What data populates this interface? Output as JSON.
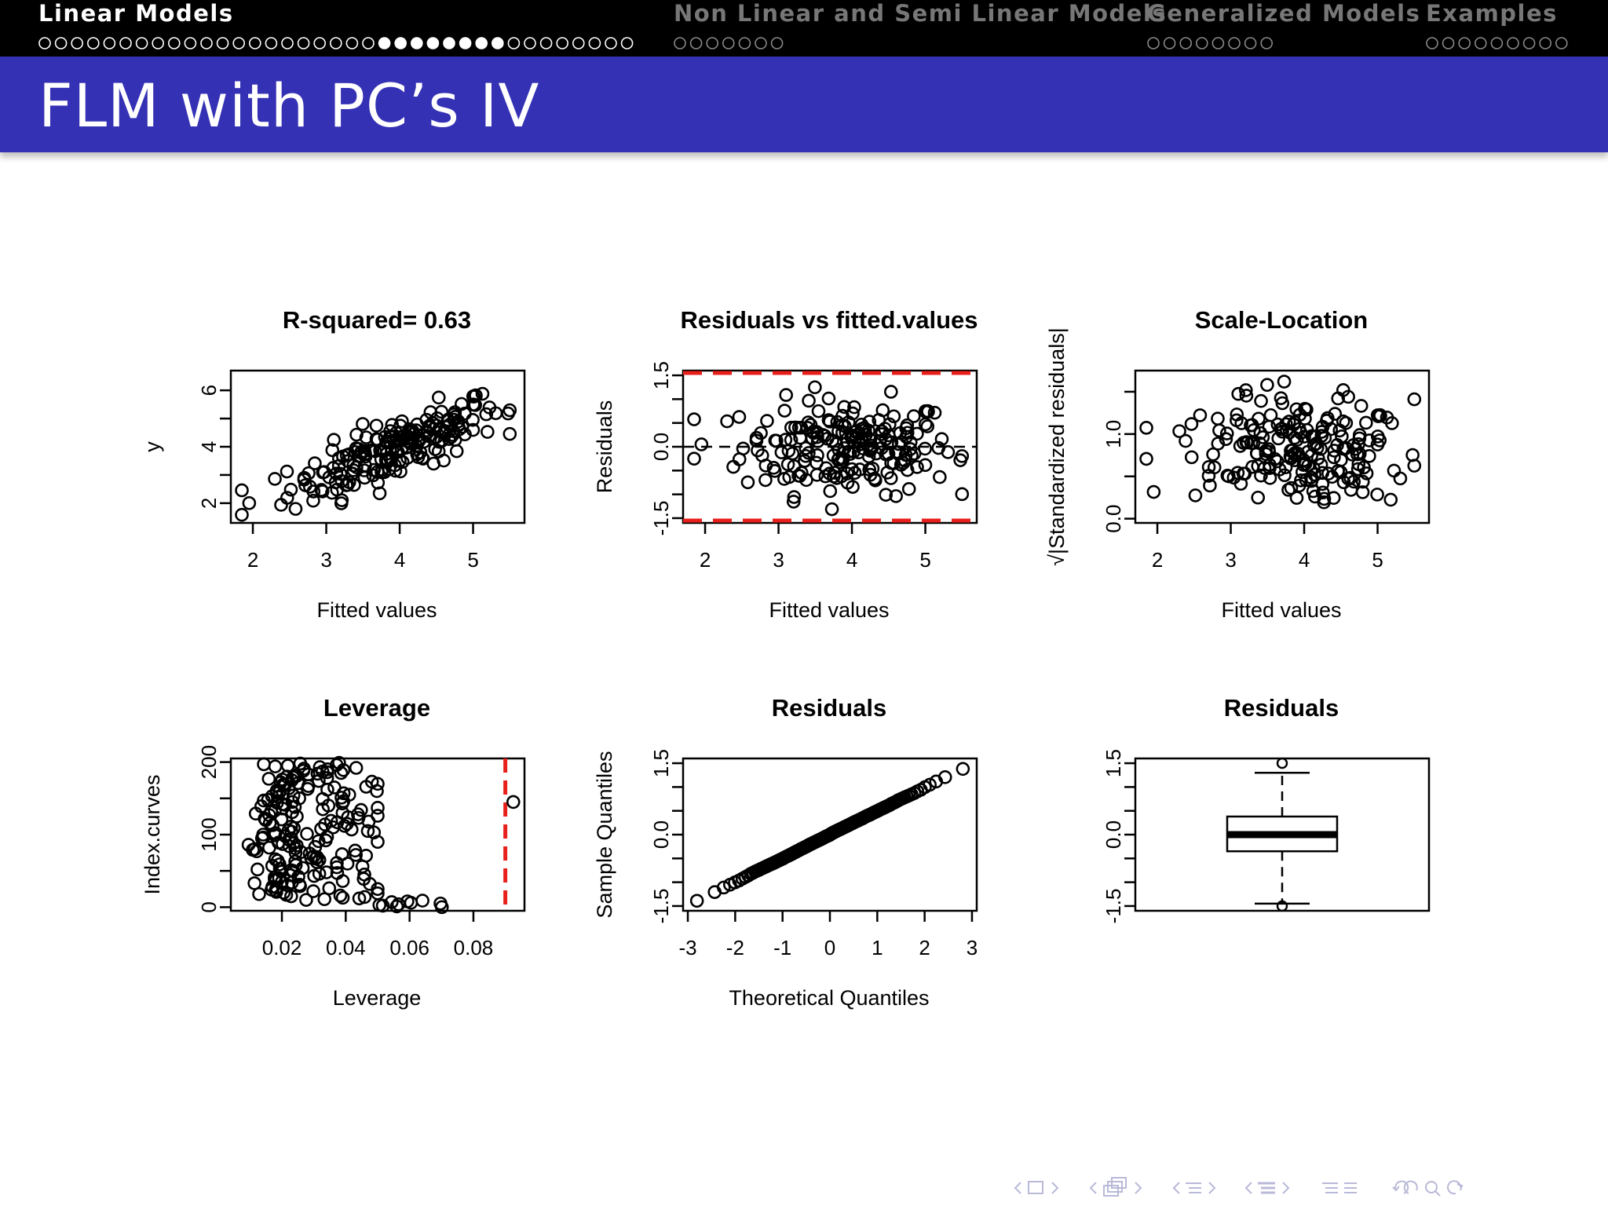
{
  "nav": {
    "sections": [
      {
        "label": "Linear Models",
        "active": true,
        "frames": 37,
        "current_frames": [
          21,
          22,
          23,
          24,
          25,
          26,
          27,
          28
        ]
      },
      {
        "label": "Non Linear and Semi Linear Models",
        "active": false,
        "frames": 7
      },
      {
        "label": "Generalized Models",
        "active": false,
        "frames": 8
      },
      {
        "label": "Examples",
        "active": false,
        "frames": 9
      }
    ]
  },
  "slide": {
    "title": "FLM with PC’s IV"
  },
  "colors": {
    "accent": "#3431b4",
    "reference_line": "#e8201c",
    "points": "#000000"
  },
  "chart_data": [
    {
      "id": "fit",
      "type": "scatter",
      "title": "R-squared= 0.63",
      "xlabel": "Fitted values",
      "ylabel": "y",
      "xlim": [
        1.7,
        5.7
      ],
      "ylim": [
        1.3,
        6.7
      ],
      "xticks": [
        2,
        3,
        4,
        5
      ],
      "yticks": [
        2,
        3,
        4,
        5,
        6
      ],
      "ytick_labels": [
        "2",
        "",
        "4",
        "",
        "6"
      ],
      "point_count": 200,
      "approx_fit": {
        "slope": 1.0,
        "intercept": 0.0,
        "noise_sd": 0.45
      }
    },
    {
      "id": "resid",
      "type": "scatter",
      "title": "Residuals vs fitted.values",
      "xlabel": "Fitted values",
      "ylabel": "Residuals",
      "xlim": [
        1.7,
        5.7
      ],
      "ylim": [
        -1.6,
        1.6
      ],
      "xticks": [
        2,
        3,
        4,
        5
      ],
      "yticks": [
        -1.5,
        -1.0,
        -0.5,
        0.0,
        0.5,
        1.0,
        1.5
      ],
      "ytick_labels": [
        "-1.5",
        "",
        "",
        "0.0",
        "",
        "",
        "1.5"
      ],
      "hlines": [
        {
          "y": 0,
          "style": "dashed",
          "color": "#000000"
        },
        {
          "y": 1.55,
          "style": "dashed",
          "color": "#e8201c"
        },
        {
          "y": -1.55,
          "style": "dashed",
          "color": "#e8201c"
        }
      ]
    },
    {
      "id": "scale",
      "type": "scatter",
      "title": "Scale-Location",
      "xlabel": "Fitted values",
      "ylabel": "√|Standardized residuals|",
      "xlim": [
        1.7,
        5.7
      ],
      "ylim": [
        -0.05,
        1.75
      ],
      "xticks": [
        2,
        3,
        4,
        5
      ],
      "yticks": [
        0,
        0.5,
        1.0,
        1.5
      ],
      "ytick_labels": [
        "0.0",
        "",
        "1.0",
        ""
      ]
    },
    {
      "id": "lev",
      "type": "scatter",
      "title": "Leverage",
      "xlabel": "Leverage",
      "ylabel": "Index.curves",
      "xlim": [
        0.004,
        0.096
      ],
      "ylim": [
        -5,
        205
      ],
      "xticks": [
        0.02,
        0.04,
        0.06,
        0.08
      ],
      "xtick_labels": [
        "0.02",
        "0.04",
        "0.06",
        "0.08"
      ],
      "yticks": [
        0,
        50,
        100,
        150,
        200
      ],
      "ytick_labels": [
        "0",
        "",
        "100",
        "",
        "200"
      ],
      "vlines": [
        {
          "x": 0.09,
          "style": "dashed",
          "color": "#e8201c"
        }
      ]
    },
    {
      "id": "qq",
      "type": "scatter",
      "title": "Residuals",
      "xlabel": "Theoretical Quantiles",
      "ylabel": "Sample Quantiles",
      "xlim": [
        -3.1,
        3.1
      ],
      "ylim": [
        -1.6,
        1.6
      ],
      "xticks": [
        -3,
        -2,
        -1,
        0,
        1,
        2,
        3
      ],
      "yticks": [
        -1.5,
        -1.0,
        -0.5,
        0.0,
        0.5,
        1.0,
        1.5
      ],
      "ytick_labels": [
        "-1.5",
        "",
        "",
        "0.0",
        "",
        "",
        "1.5"
      ],
      "approx_fit": {
        "slope": 0.5,
        "intercept": 0.0
      }
    },
    {
      "id": "box",
      "type": "boxplot",
      "title": "Residuals",
      "xlabel": "",
      "ylabel": "",
      "ylim": [
        -1.6,
        1.6
      ],
      "yticks": [
        -1.5,
        -1.0,
        -0.5,
        0.0,
        0.5,
        1.0,
        1.5
      ],
      "ytick_labels": [
        "-1.5",
        "",
        "",
        "0.0",
        "",
        "",
        "1.5"
      ],
      "stats": {
        "lower_whisker": -1.45,
        "q1": -0.35,
        "median": 0.0,
        "q3": 0.38,
        "upper_whisker": 1.3
      },
      "outliers": [
        1.5,
        -1.5
      ]
    }
  ]
}
